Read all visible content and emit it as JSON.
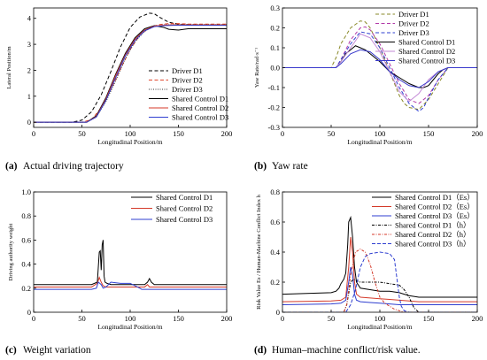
{
  "chart_data": [
    {
      "id": "a",
      "type": "line",
      "caption_tag": "(a)",
      "caption": "Actual driving trajectory",
      "xlabel": "Longitudinal Position/m",
      "ylabel": "Lateral Position/m",
      "xlim": [
        0,
        200
      ],
      "ylim": [
        -0.2,
        4.4
      ],
      "xticks": [
        0,
        50,
        100,
        150,
        200
      ],
      "yticks": [
        0,
        1,
        2,
        3,
        4
      ],
      "grid": false,
      "legend_position": "center-right",
      "series": [
        {
          "name": "Driver D1",
          "color": "#000000",
          "dash": "4,2.5",
          "x": [
            0,
            40,
            50,
            60,
            70,
            80,
            90,
            100,
            110,
            120,
            125,
            130,
            140,
            150,
            160,
            170,
            200
          ],
          "y": [
            0,
            0,
            0.08,
            0.4,
            1.05,
            1.95,
            2.9,
            3.65,
            4.05,
            4.2,
            4.18,
            4.05,
            3.85,
            3.78,
            3.76,
            3.75,
            3.75
          ]
        },
        {
          "name": "Driver D2",
          "color": "#e0482f",
          "dash": "4,2.5",
          "x": [
            0,
            50,
            60,
            70,
            80,
            90,
            100,
            110,
            120,
            130,
            140,
            150,
            160,
            200
          ],
          "y": [
            0,
            0,
            0.1,
            0.55,
            1.25,
            2.05,
            2.8,
            3.35,
            3.65,
            3.76,
            3.8,
            3.8,
            3.78,
            3.78
          ]
        },
        {
          "name": "Driver D3",
          "color": "#333333",
          "dash": "1,1.5",
          "x": [
            0,
            55,
            65,
            75,
            85,
            95,
            105,
            115,
            125,
            135,
            145,
            155,
            200
          ],
          "y": [
            0,
            0,
            0.2,
            0.8,
            1.6,
            2.45,
            3.1,
            3.5,
            3.7,
            3.75,
            3.76,
            3.76,
            3.76
          ]
        },
        {
          "name": "Shared Control D1",
          "color": "#000000",
          "dash": "",
          "x": [
            0,
            55,
            65,
            75,
            85,
            95,
            105,
            115,
            125,
            135,
            140,
            150,
            160,
            200
          ],
          "y": [
            0,
            0,
            0.25,
            0.95,
            1.85,
            2.65,
            3.25,
            3.6,
            3.72,
            3.65,
            3.58,
            3.55,
            3.6,
            3.6
          ]
        },
        {
          "name": "Shared Control D2",
          "color": "#d43a2a",
          "dash": "",
          "x": [
            0,
            55,
            65,
            75,
            85,
            95,
            105,
            115,
            125,
            135,
            145,
            200
          ],
          "y": [
            0,
            0,
            0.22,
            0.9,
            1.8,
            2.6,
            3.2,
            3.55,
            3.7,
            3.74,
            3.75,
            3.75
          ]
        },
        {
          "name": "Shared Control D3",
          "color": "#2f3fd0",
          "dash": "",
          "x": [
            0,
            55,
            65,
            75,
            85,
            95,
            105,
            115,
            125,
            135,
            145,
            200
          ],
          "y": [
            0,
            0,
            0.2,
            0.85,
            1.72,
            2.55,
            3.15,
            3.52,
            3.68,
            3.72,
            3.73,
            3.73
          ]
        }
      ]
    },
    {
      "id": "b",
      "type": "line",
      "caption_tag": "(b)",
      "caption": "Yaw rate",
      "xlabel": "Longitudinal Position/m",
      "ylabel": "Yaw Rate/rad·s⁻¹",
      "xlim": [
        0,
        200
      ],
      "ylim": [
        -0.3,
        0.3
      ],
      "xticks": [
        0,
        50,
        100,
        150,
        200
      ],
      "yticks": [
        -0.3,
        -0.2,
        -0.1,
        0.0,
        0.1,
        0.2,
        0.3
      ],
      "ytick_labels": [
        "-0.3",
        "-0.2",
        "-0.1",
        "0.0",
        "0.1",
        "0.2",
        "0.3"
      ],
      "grid": false,
      "legend_position": "top-right",
      "series": [
        {
          "name": "Driver D1",
          "color": "#8a8a2a",
          "dash": "4,2.5",
          "x": [
            0,
            50,
            55,
            60,
            70,
            80,
            85,
            90,
            100,
            110,
            120,
            125,
            130,
            140,
            150,
            160,
            165,
            170,
            200
          ],
          "y": [
            0,
            0,
            0.05,
            0.12,
            0.2,
            0.235,
            0.23,
            0.2,
            0.1,
            -0.02,
            -0.14,
            -0.18,
            -0.2,
            -0.21,
            -0.16,
            -0.08,
            -0.04,
            0,
            0
          ]
        },
        {
          "name": "Driver D2",
          "color": "#b23aa8",
          "dash": "4,2.5",
          "x": [
            0,
            55,
            60,
            70,
            80,
            85,
            90,
            100,
            110,
            120,
            130,
            140,
            150,
            160,
            170,
            200
          ],
          "y": [
            0,
            0,
            0.04,
            0.14,
            0.2,
            0.205,
            0.19,
            0.12,
            0.02,
            -0.08,
            -0.16,
            -0.18,
            -0.14,
            -0.06,
            0,
            0
          ]
        },
        {
          "name": "Driver D3",
          "color": "#2f3fd0",
          "dash": "4,2.5",
          "x": [
            0,
            55,
            60,
            70,
            80,
            90,
            100,
            110,
            120,
            130,
            140,
            145,
            150,
            160,
            170,
            200
          ],
          "y": [
            0,
            0,
            0.04,
            0.12,
            0.18,
            0.17,
            0.1,
            0.0,
            -0.1,
            -0.18,
            -0.22,
            -0.2,
            -0.15,
            -0.06,
            0,
            0
          ]
        },
        {
          "name": "Shared Control D1",
          "color": "#000000",
          "dash": "",
          "x": [
            0,
            55,
            60,
            65,
            70,
            75,
            80,
            85,
            90,
            100,
            110,
            120,
            130,
            140,
            145,
            150,
            155,
            160,
            165,
            170,
            200
          ],
          "y": [
            0,
            0,
            0.03,
            0.07,
            0.09,
            0.11,
            0.1,
            0.09,
            0.07,
            0.03,
            -0.02,
            -0.05,
            -0.08,
            -0.1,
            -0.1,
            -0.09,
            -0.06,
            -0.03,
            -0.01,
            0,
            0
          ]
        },
        {
          "name": "Shared Control D2",
          "color": "#c38ad6",
          "dash": "",
          "x": [
            0,
            55,
            60,
            70,
            80,
            90,
            100,
            110,
            120,
            130,
            140,
            150,
            160,
            170,
            200
          ],
          "y": [
            0,
            0,
            0.03,
            0.1,
            0.17,
            0.15,
            0.08,
            -0.02,
            -0.12,
            -0.17,
            -0.13,
            -0.06,
            -0.02,
            0,
            0
          ]
        },
        {
          "name": "Shared Control D3",
          "color": "#3a3acc",
          "dash": "",
          "x": [
            0,
            55,
            60,
            70,
            80,
            90,
            100,
            110,
            120,
            130,
            140,
            150,
            160,
            170,
            200
          ],
          "y": [
            0,
            0,
            0.02,
            0.07,
            0.09,
            0.08,
            0.04,
            -0.02,
            -0.06,
            -0.09,
            -0.1,
            -0.07,
            -0.02,
            0,
            0
          ]
        }
      ]
    },
    {
      "id": "c",
      "type": "line",
      "caption_tag": "(c)",
      "caption": "Weight variation",
      "xlabel": "Longitudinal Position/m",
      "ylabel": "Driving authority weight",
      "xlim": [
        0,
        200
      ],
      "ylim": [
        0,
        1
      ],
      "xticks": [
        0,
        50,
        100,
        150,
        200
      ],
      "yticks": [
        0,
        0.2,
        0.4,
        0.6,
        0.8,
        1.0
      ],
      "ytick_labels": [
        "0",
        "0.2",
        "0.4",
        "0.6",
        "0.8",
        "1.0"
      ],
      "grid": false,
      "legend_position": "top-right",
      "series": [
        {
          "name": "Shared Control D1",
          "color": "#000000",
          "dash": "",
          "x": [
            0,
            60,
            66,
            68,
            69,
            70,
            70.5,
            71,
            72,
            72.5,
            73,
            74,
            76,
            80,
            100,
            110,
            115,
            118,
            120,
            122,
            125,
            130,
            140,
            200
          ],
          "y": [
            0.23,
            0.23,
            0.25,
            0.5,
            0.51,
            0.35,
            0.45,
            0.56,
            0.6,
            0.45,
            0.3,
            0.25,
            0.24,
            0.23,
            0.23,
            0.23,
            0.23,
            0.25,
            0.28,
            0.25,
            0.23,
            0.23,
            0.23,
            0.23
          ]
        },
        {
          "name": "Shared Control D2",
          "color": "#d43a2a",
          "dash": "",
          "x": [
            0,
            60,
            66,
            68,
            70,
            72,
            75,
            80,
            100,
            115,
            118,
            120,
            125,
            200
          ],
          "y": [
            0.21,
            0.21,
            0.24,
            0.29,
            0.25,
            0.22,
            0.21,
            0.21,
            0.21,
            0.21,
            0.23,
            0.21,
            0.21,
            0.21
          ]
        },
        {
          "name": "Shared Control D3",
          "color": "#2f3fd0",
          "dash": "",
          "x": [
            0,
            60,
            65,
            67,
            70,
            72,
            75,
            80,
            90,
            100,
            105,
            110,
            112,
            115,
            118,
            120,
            125,
            200
          ],
          "y": [
            0.19,
            0.19,
            0.2,
            0.25,
            0.23,
            0.2,
            0.21,
            0.25,
            0.24,
            0.24,
            0.22,
            0.2,
            0.19,
            0.19,
            0.19,
            0.19,
            0.19,
            0.19
          ]
        }
      ]
    },
    {
      "id": "d",
      "type": "line",
      "caption_tag": "(d)",
      "caption": "Human–machine conflict/risk value.",
      "xlabel": "Longitudinal Position/m",
      "ylabel": "Risk Value Es / Human-Machine Conflict Index h",
      "xlim": [
        0,
        200
      ],
      "ylim": [
        0,
        0.8
      ],
      "xticks": [
        0,
        50,
        100,
        150,
        200
      ],
      "yticks": [
        0,
        0.2,
        0.4,
        0.6,
        0.8
      ],
      "ytick_labels": [
        "0",
        "0.2",
        "0.4",
        "0.6",
        "0.8"
      ],
      "grid": false,
      "legend_position": "top-right",
      "series": [
        {
          "name": "Shared Control D1（Es）",
          "color": "#000000",
          "dash": "",
          "x": [
            0,
            50,
            55,
            58,
            60,
            63,
            65,
            67,
            68,
            70,
            72,
            74,
            76,
            80,
            90,
            100,
            110,
            120,
            125,
            130,
            135,
            140,
            200
          ],
          "y": [
            0.12,
            0.13,
            0.14,
            0.16,
            0.19,
            0.22,
            0.26,
            0.45,
            0.6,
            0.63,
            0.5,
            0.3,
            0.2,
            0.16,
            0.15,
            0.14,
            0.14,
            0.13,
            0.12,
            0.11,
            0.105,
            0.1,
            0.1
          ]
        },
        {
          "name": "Shared Control D2（Es）",
          "color": "#d43a2a",
          "dash": "",
          "x": [
            0,
            50,
            60,
            65,
            68,
            70,
            72,
            74,
            76,
            80,
            90,
            100,
            110,
            120,
            130,
            140,
            200
          ],
          "y": [
            0.07,
            0.075,
            0.08,
            0.1,
            0.3,
            0.5,
            0.4,
            0.2,
            0.12,
            0.1,
            0.095,
            0.09,
            0.085,
            0.08,
            0.075,
            0.07,
            0.07
          ]
        },
        {
          "name": "Shared Control D3（Es）",
          "color": "#2f3fd0",
          "dash": "",
          "x": [
            0,
            50,
            60,
            65,
            68,
            70,
            72,
            74,
            76,
            80,
            90,
            100,
            110,
            120,
            130,
            140,
            200
          ],
          "y": [
            0.05,
            0.055,
            0.06,
            0.08,
            0.2,
            0.3,
            0.25,
            0.12,
            0.08,
            0.07,
            0.065,
            0.06,
            0.055,
            0.05,
            0.05,
            0.05,
            0.05
          ]
        },
        {
          "name": "Shared Control D1（h）",
          "color": "#000000",
          "dash": "3,1.5,1,1.5",
          "x": [
            0,
            63,
            66,
            70,
            73,
            76,
            80,
            90,
            100,
            110,
            120,
            125,
            130,
            135,
            140,
            200
          ],
          "y": [
            0,
            0,
            0.05,
            0.2,
            0.22,
            0.21,
            0.2,
            0.2,
            0.2,
            0.19,
            0.18,
            0.15,
            0.1,
            0.03,
            0,
            0
          ]
        },
        {
          "name": "Shared Control D2（h）",
          "color": "#d43a2a",
          "dash": "3,1.5,1,1.5",
          "x": [
            0,
            63,
            66,
            70,
            75,
            80,
            85,
            90,
            95,
            100,
            105,
            110,
            115,
            120,
            125,
            130,
            200
          ],
          "y": [
            0,
            0,
            0.05,
            0.25,
            0.4,
            0.42,
            0.4,
            0.32,
            0.2,
            0.1,
            0.06,
            0.04,
            0.02,
            0.01,
            0,
            0,
            0
          ]
        },
        {
          "name": "Shared Control D3（h）",
          "color": "#2f3fd0",
          "dash": "4,2",
          "x": [
            0,
            65,
            70,
            75,
            80,
            85,
            90,
            100,
            110,
            115,
            118,
            120,
            122,
            125,
            130,
            200
          ],
          "y": [
            0,
            0,
            0.05,
            0.15,
            0.3,
            0.37,
            0.39,
            0.4,
            0.39,
            0.35,
            0.2,
            0.1,
            0.04,
            0.01,
            0,
            0
          ]
        }
      ]
    }
  ]
}
